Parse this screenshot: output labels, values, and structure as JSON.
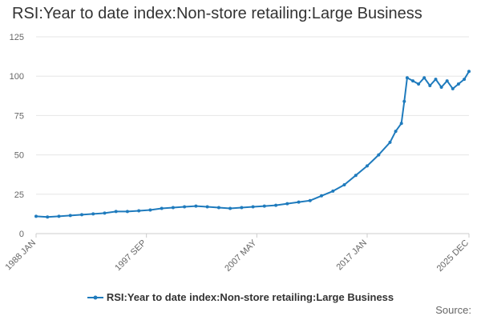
{
  "chart_data": {
    "type": "line",
    "title": "RSI:Year to date index:Non-store retailing:Large Business",
    "xlabel": "",
    "ylabel": "",
    "ylim": [
      0,
      125
    ],
    "yticks": [
      0,
      25,
      50,
      75,
      100,
      125
    ],
    "x_start": "1988 JAN",
    "x_end": "2025 DEC",
    "xticks": [
      "1988 JAN",
      "1997 SEP",
      "2007 MAY",
      "2017 JAN",
      "2025 DEC"
    ],
    "grid": true,
    "legend_position": "bottom-center",
    "series": [
      {
        "name": "RSI:Year to date index:Non-store retailing:Large Business",
        "color": "#1f7bbd",
        "markers": true,
        "x": [
          "1988 JAN",
          "1989 JAN",
          "1990 JAN",
          "1991 JAN",
          "1992 JAN",
          "1993 JAN",
          "1994 JAN",
          "1995 JAN",
          "1996 JAN",
          "1997 JAN",
          "1998 JAN",
          "1999 JAN",
          "2000 JAN",
          "2001 JAN",
          "2002 JAN",
          "2003 JAN",
          "2004 JAN",
          "2005 JAN",
          "2006 JAN",
          "2007 JAN",
          "2008 JAN",
          "2009 JAN",
          "2010 JAN",
          "2011 JAN",
          "2012 JAN",
          "2013 JAN",
          "2014 JAN",
          "2015 JAN",
          "2016 JAN",
          "2017 JAN",
          "2018 JAN",
          "2019 JAN",
          "2019 JUL",
          "2020 JAN",
          "2020 APR",
          "2020 JUL",
          "2021 JAN",
          "2021 JUL",
          "2022 JAN",
          "2022 JUL",
          "2023 JAN",
          "2023 JUL",
          "2024 JAN",
          "2024 JUL",
          "2025 JAN",
          "2025 JUL",
          "2025 DEC"
        ],
        "values": [
          11,
          10.5,
          11,
          11.5,
          12,
          12.5,
          13,
          14,
          14,
          14.5,
          15,
          16,
          16.5,
          17,
          17.5,
          17,
          16.5,
          16,
          16.5,
          17,
          17.5,
          18,
          19,
          20,
          21,
          24,
          27,
          31,
          37,
          43,
          50,
          58,
          65,
          70,
          84,
          99,
          97,
          95,
          99,
          94,
          98,
          93,
          97,
          92,
          95,
          98,
          103
        ]
      }
    ]
  },
  "footer": {
    "source": "Source:"
  }
}
